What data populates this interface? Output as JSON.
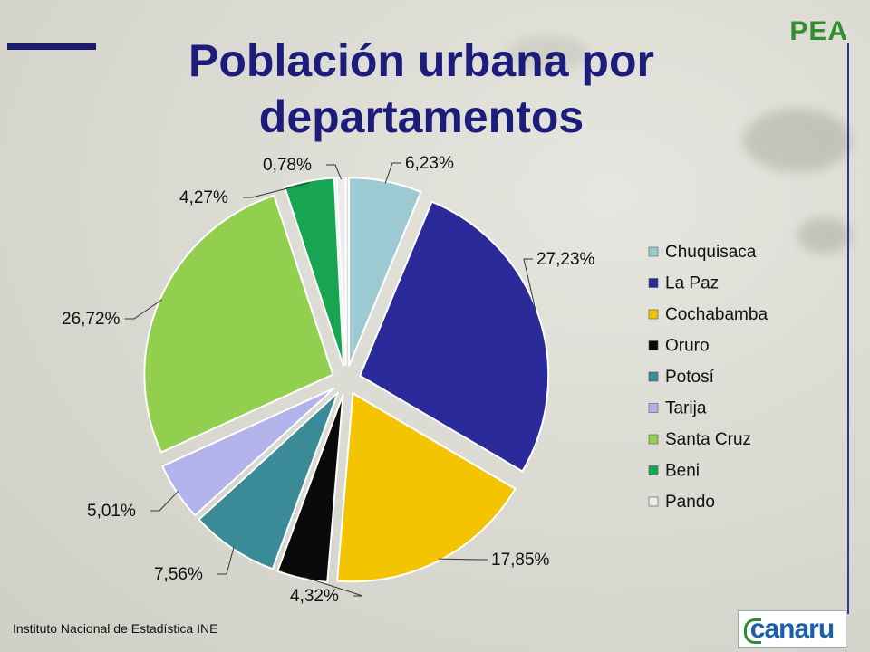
{
  "slide": {
    "title": "Población urbana por departamentos",
    "corner_label": "PEA",
    "source": "Instituto Nacional de Estadística INE",
    "logo_text": "canaru"
  },
  "chart_data": {
    "type": "pie",
    "title": "",
    "legend_position": "right",
    "categories": [
      "Chuquisaca",
      "La Paz",
      "Cochabamba",
      "Oruro",
      "Potosí",
      "Tarija",
      "Santa Cruz",
      "Beni",
      "Pando"
    ],
    "values": [
      6.23,
      27.23,
      17.85,
      4.32,
      7.56,
      5.01,
      26.72,
      4.27,
      0.78
    ],
    "labels": [
      "6,23%",
      "27,23%",
      "17,85%",
      "4,32%",
      "7,56%",
      "5,01%",
      "26,72%",
      "4,27%",
      "0,78%"
    ],
    "colors": [
      "#9dc9d3",
      "#2a2a9a",
      "#f5c400",
      "#0a0a0a",
      "#3a8a98",
      "#b3b3ec",
      "#92cf4e",
      "#17a552",
      "#ececec"
    ],
    "exploded": true
  }
}
